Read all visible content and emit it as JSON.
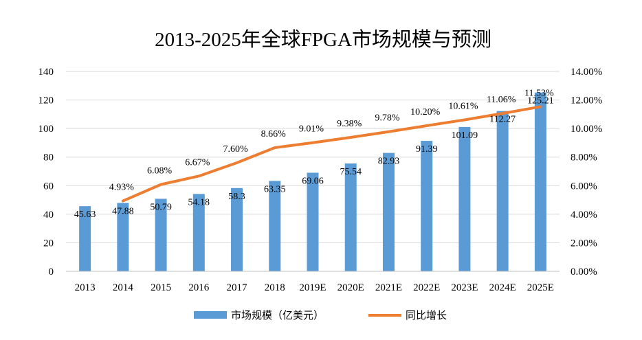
{
  "chart_data": {
    "type": "bar+line",
    "title": "2013-2025年全球FPGA市场规模与预测",
    "categories": [
      "2013",
      "2014",
      "2015",
      "2016",
      "2017",
      "2018",
      "2019E",
      "2020E",
      "2021E",
      "2022E",
      "2023E",
      "2024E",
      "2025E"
    ],
    "series": [
      {
        "name": "市场规模（亿美元）",
        "type": "bar",
        "axis": "left",
        "color": "#5B9BD5",
        "values": [
          45.63,
          47.88,
          50.79,
          54.18,
          58.3,
          63.35,
          69.06,
          75.54,
          82.93,
          91.39,
          101.09,
          112.27,
          125.21
        ],
        "labels": [
          "45.63",
          "47.88",
          "50.79",
          "54.18",
          "58.3",
          "63.35",
          "69.06",
          "75.54",
          "82.93",
          "91.39",
          "101.09",
          "112.27",
          "125.21"
        ]
      },
      {
        "name": "同比增长",
        "type": "line",
        "axis": "right",
        "color": "#ED7D31",
        "values": [
          null,
          4.93,
          6.08,
          6.67,
          7.6,
          8.66,
          9.01,
          9.38,
          9.78,
          10.2,
          10.61,
          11.06,
          11.53
        ],
        "labels": [
          null,
          "4.93%",
          "6.08%",
          "6.67%",
          "7.60%",
          "8.66%",
          "9.01%",
          "9.38%",
          "9.78%",
          "10.20%",
          "10.61%",
          "11.06%",
          "11.53%"
        ]
      }
    ],
    "y_left": {
      "range": [
        0,
        140
      ],
      "ticks": [
        0,
        20,
        40,
        60,
        80,
        100,
        120,
        140
      ]
    },
    "y_right": {
      "range": [
        0,
        14
      ],
      "ticks": [
        "0.00%",
        "2.00%",
        "4.00%",
        "6.00%",
        "8.00%",
        "10.00%",
        "12.00%",
        "14.00%"
      ]
    },
    "grid": true,
    "legend_position": "bottom"
  }
}
